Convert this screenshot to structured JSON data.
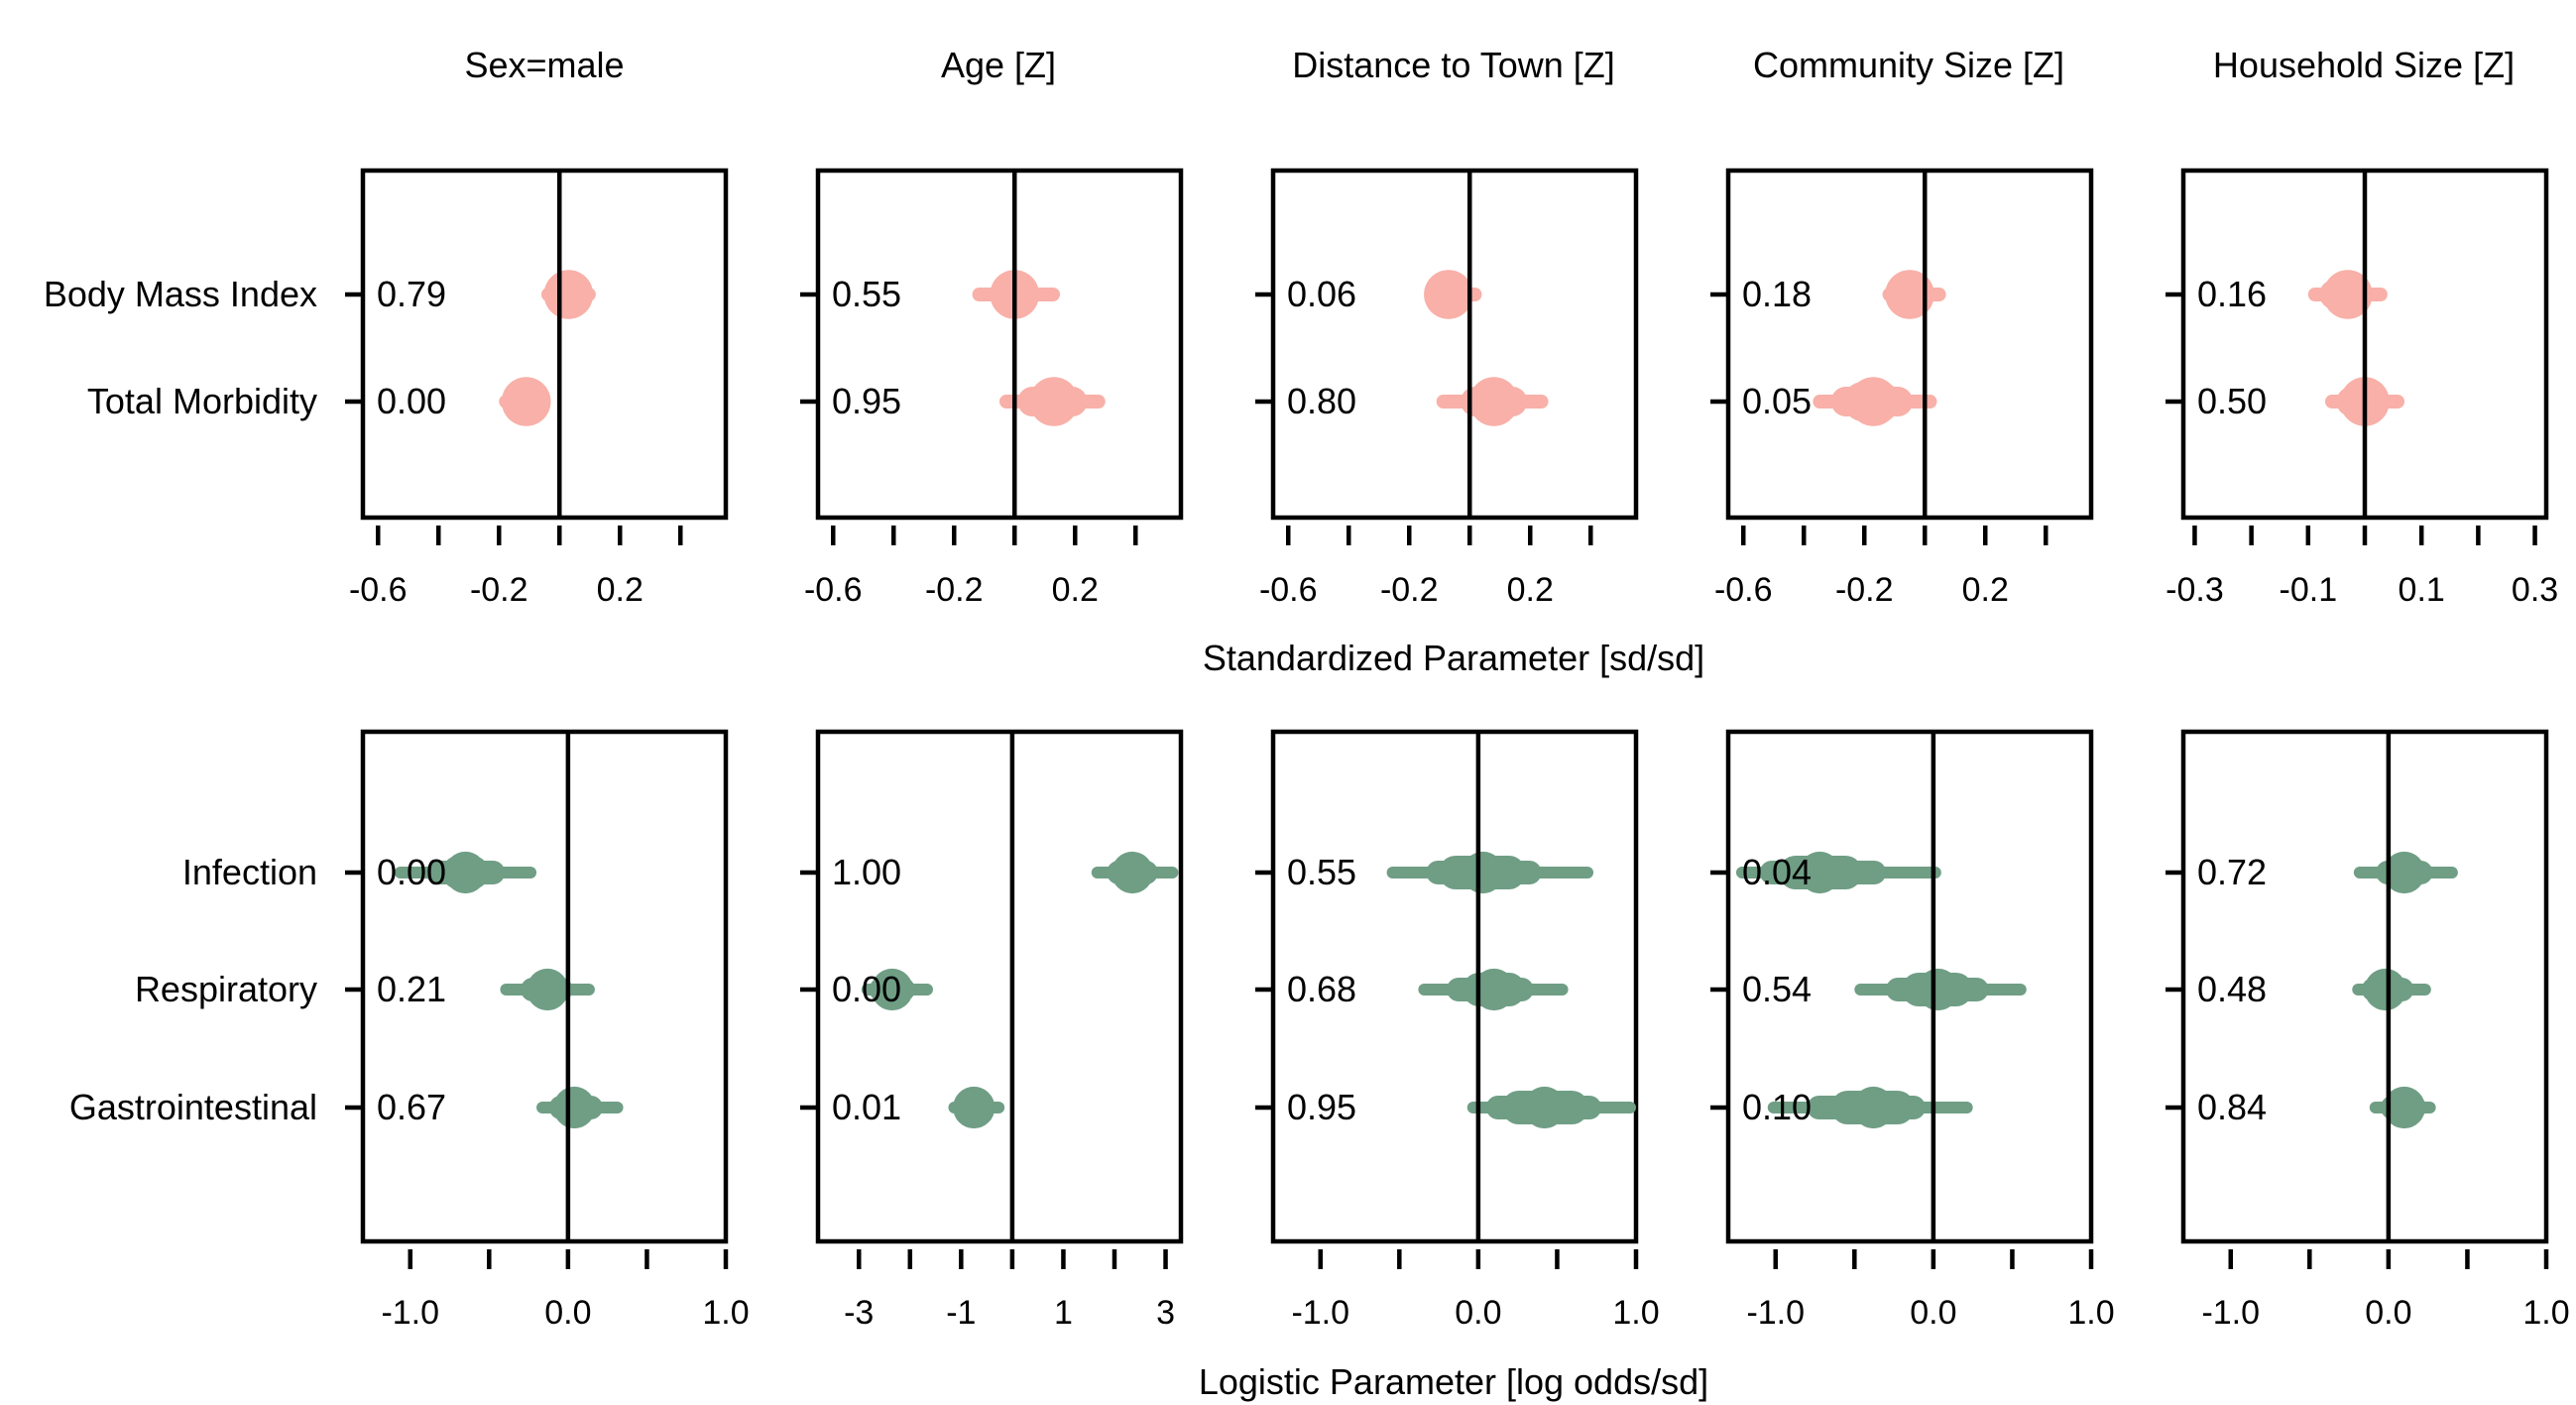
{
  "colors": {
    "top": "#f8b0a8",
    "bottom": "#6f9e85"
  },
  "column_titles": [
    "Sex=male",
    "Age [Z]",
    "Distance to Town [Z]",
    "Community Size [Z]",
    "Household Size [Z]"
  ],
  "axis_titles": {
    "top": "Standardized Parameter [sd/sd]",
    "bottom": "Logistic Parameter [log odds/sd]"
  },
  "chart_data": [
    {
      "type": "scatter",
      "row": "top",
      "row_labels": [
        "Body Mass Index",
        "Total Morbidity"
      ],
      "panels": [
        {
          "title": "Sex=male",
          "xlim": [
            -0.65,
            0.55
          ],
          "ticks": [
            -0.6,
            -0.4,
            -0.2,
            0.0,
            0.2,
            0.4
          ],
          "tick_labels": [
            "-0.6",
            "",
            "-0.2",
            "",
            "0.2",
            ""
          ],
          "zero": 0,
          "series": [
            {
              "label": "0.79",
              "center": 0.03,
              "thick": [
                -0.02,
                0.08
              ],
              "medium": [
                -0.04,
                0.1
              ],
              "thin": [
                -0.06,
                0.12
              ]
            },
            {
              "label": "0.00",
              "center": -0.11,
              "thick": [
                -0.15,
                -0.07
              ],
              "medium": [
                -0.17,
                -0.05
              ],
              "thin": [
                -0.2,
                -0.03
              ]
            }
          ]
        },
        {
          "title": "Age [Z]",
          "xlim": [
            -0.65,
            0.55
          ],
          "ticks": [
            -0.6,
            -0.4,
            -0.2,
            0.0,
            0.2,
            0.4
          ],
          "tick_labels": [
            "-0.6",
            "",
            "-0.2",
            "",
            "0.2",
            ""
          ],
          "zero": 0,
          "series": [
            {
              "label": "0.55",
              "center": 0.0,
              "thick": [
                -0.05,
                0.05
              ],
              "medium": [
                -0.08,
                0.08
              ],
              "thin": [
                -0.14,
                0.15
              ]
            },
            {
              "label": "0.95",
              "center": 0.13,
              "thick": [
                0.05,
                0.2
              ],
              "medium": [
                0.01,
                0.24
              ],
              "thin": [
                -0.05,
                0.3
              ]
            }
          ]
        },
        {
          "title": "Distance to Town [Z]",
          "xlim": [
            -0.65,
            0.55
          ],
          "ticks": [
            -0.6,
            -0.4,
            -0.2,
            0.0,
            0.2,
            0.4
          ],
          "tick_labels": [
            "-0.6",
            "",
            "-0.2",
            "",
            "0.2",
            ""
          ],
          "zero": 0,
          "series": [
            {
              "label": "0.06",
              "center": -0.07,
              "thick": [
                -0.11,
                -0.04
              ],
              "medium": [
                -0.13,
                -0.01
              ],
              "thin": [
                -0.15,
                0.04
              ]
            },
            {
              "label": "0.80",
              "center": 0.08,
              "thick": [
                0.02,
                0.14
              ],
              "medium": [
                -0.03,
                0.19
              ],
              "thin": [
                -0.11,
                0.26
              ]
            }
          ]
        },
        {
          "title": "Community Size [Z]",
          "xlim": [
            -0.65,
            0.55
          ],
          "ticks": [
            -0.6,
            -0.4,
            -0.2,
            0.0,
            0.2,
            0.4
          ],
          "tick_labels": [
            "-0.6",
            "",
            "-0.2",
            "",
            "0.2",
            ""
          ],
          "zero": 0,
          "series": [
            {
              "label": "0.18",
              "center": -0.05,
              "thick": [
                -0.1,
                -0.01
              ],
              "medium": [
                -0.12,
                0.02
              ],
              "thin": [
                -0.14,
                0.07
              ]
            },
            {
              "label": "0.05",
              "center": -0.17,
              "thick": [
                -0.27,
                -0.08
              ],
              "medium": [
                -0.31,
                -0.04
              ],
              "thin": [
                -0.37,
                0.04
              ]
            }
          ]
        },
        {
          "title": "Household Size [Z]",
          "xlim": [
            -0.32,
            0.32
          ],
          "ticks": [
            -0.3,
            -0.2,
            -0.1,
            0.0,
            0.1,
            0.2,
            0.3
          ],
          "tick_labels": [
            "-0.3",
            "",
            "-0.1",
            "",
            "0.1",
            "",
            "0.3"
          ],
          "zero": 0,
          "series": [
            {
              "label": "0.16",
              "center": -0.03,
              "thick": [
                -0.06,
                0.0
              ],
              "medium": [
                -0.08,
                0.01
              ],
              "thin": [
                -0.1,
                0.04
              ]
            },
            {
              "label": "0.50",
              "center": 0.0,
              "thick": [
                -0.03,
                0.03
              ],
              "medium": [
                -0.05,
                0.04
              ],
              "thin": [
                -0.07,
                0.07
              ]
            }
          ]
        }
      ]
    },
    {
      "type": "scatter",
      "row": "bottom",
      "row_labels": [
        "Infection",
        "Respiratory",
        "Gastrointestinal"
      ],
      "panels": [
        {
          "title": "Sex=male",
          "xlim": [
            -1.3,
            1.0
          ],
          "ticks": [
            -1.0,
            -0.5,
            0.0,
            0.5,
            1.0
          ],
          "tick_labels": [
            "-1.0",
            "",
            "0.0",
            "",
            "1.0"
          ],
          "zero": 0,
          "series": [
            {
              "label": "0.00",
              "center": -0.65,
              "thick": [
                -0.8,
                -0.5
              ],
              "medium": [
                -0.9,
                -0.4
              ],
              "thin": [
                -1.1,
                -0.2
              ]
            },
            {
              "label": "0.21",
              "center": -0.13,
              "thick": [
                -0.24,
                -0.03
              ],
              "medium": [
                -0.3,
                0.03
              ],
              "thin": [
                -0.43,
                0.17
              ]
            },
            {
              "label": "0.67",
              "center": 0.04,
              "thick": [
                -0.06,
                0.15
              ],
              "medium": [
                -0.12,
                0.22
              ],
              "thin": [
                -0.2,
                0.35
              ]
            }
          ]
        },
        {
          "title": "Age [Z]",
          "xlim": [
            -3.8,
            3.3
          ],
          "ticks": [
            -3,
            -2,
            -1,
            0,
            1,
            2,
            3
          ],
          "tick_labels": [
            "-3",
            "",
            "-1",
            "",
            "1",
            "",
            "3"
          ],
          "zero": 0,
          "series": [
            {
              "label": "1.00",
              "center": 2.35,
              "thick": [
                2.0,
                2.65
              ],
              "medium": [
                1.85,
                2.85
              ],
              "thin": [
                1.55,
                3.25
              ]
            },
            {
              "label": "0.00",
              "center": -2.35,
              "thick": [
                -2.65,
                -2.05
              ],
              "medium": [
                -2.8,
                -1.9
              ],
              "thin": [
                -2.95,
                -1.55
              ]
            },
            {
              "label": "0.01",
              "center": -0.75,
              "thick": [
                -1.05,
                -0.45
              ],
              "medium": [
                -1.15,
                -0.35
              ],
              "thin": [
                -1.25,
                -0.15
              ]
            }
          ]
        },
        {
          "title": "Distance to Town [Z]",
          "xlim": [
            -1.3,
            1.0
          ],
          "ticks": [
            -1.0,
            -0.5,
            0.0,
            0.5,
            1.0
          ],
          "tick_labels": [
            "-1.0",
            "",
            "0.0",
            "",
            "1.0"
          ],
          "zero": 0,
          "series": [
            {
              "label": "0.55",
              "center": 0.03,
              "thick": [
                -0.25,
                0.3
              ],
              "medium": [
                -0.33,
                0.4
              ],
              "thin": [
                -0.58,
                0.73
              ]
            },
            {
              "label": "0.68",
              "center": 0.1,
              "thick": [
                -0.1,
                0.3
              ],
              "medium": [
                -0.2,
                0.35
              ],
              "thin": [
                -0.38,
                0.57
              ]
            },
            {
              "label": "0.95",
              "center": 0.42,
              "thick": [
                0.15,
                0.7
              ],
              "medium": [
                0.05,
                0.78
              ],
              "thin": [
                -0.07,
                1.0
              ]
            }
          ]
        },
        {
          "title": "Community Size [Z]",
          "xlim": [
            -1.3,
            1.0
          ],
          "ticks": [
            -1.0,
            -0.5,
            0.0,
            0.5,
            1.0
          ],
          "tick_labels": [
            "-1.0",
            "",
            "0.0",
            "",
            "1.0"
          ],
          "zero": 0,
          "series": [
            {
              "label": "0.04",
              "center": -0.72,
              "thick": [
                -0.98,
                -0.45
              ],
              "medium": [
                -1.1,
                -0.3
              ],
              "thin": [
                -1.25,
                0.05
              ]
            },
            {
              "label": "0.54",
              "center": 0.03,
              "thick": [
                -0.2,
                0.25
              ],
              "medium": [
                -0.3,
                0.35
              ],
              "thin": [
                -0.5,
                0.59
              ]
            },
            {
              "label": "0.10",
              "center": -0.38,
              "thick": [
                -0.65,
                -0.12
              ],
              "medium": [
                -0.8,
                -0.05
              ],
              "thin": [
                -1.05,
                0.25
              ]
            }
          ]
        },
        {
          "title": "Household Size [Z]",
          "xlim": [
            -1.3,
            1.0
          ],
          "ticks": [
            -1.0,
            -0.5,
            0.0,
            0.5,
            1.0
          ],
          "tick_labels": [
            "-1.0",
            "",
            "0.0",
            "",
            "1.0"
          ],
          "zero": 0,
          "series": [
            {
              "label": "0.72",
              "center": 0.1,
              "thick": [
                -0.02,
                0.22
              ],
              "medium": [
                -0.08,
                0.28
              ],
              "thin": [
                -0.22,
                0.44
              ]
            },
            {
              "label": "0.48",
              "center": -0.02,
              "thick": [
                -0.12,
                0.1
              ],
              "medium": [
                -0.17,
                0.16
              ],
              "thin": [
                -0.23,
                0.27
              ]
            },
            {
              "label": "0.84",
              "center": 0.1,
              "thick": [
                0.0,
                0.2
              ],
              "medium": [
                -0.05,
                0.24
              ],
              "thin": [
                -0.12,
                0.3
              ]
            }
          ]
        }
      ]
    }
  ]
}
